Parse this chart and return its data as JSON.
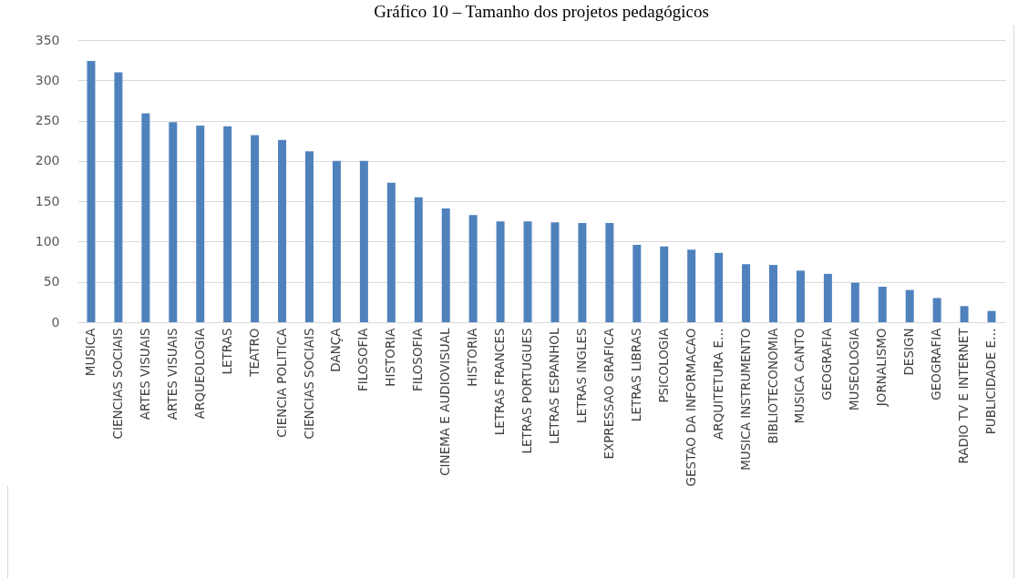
{
  "chart_data": {
    "type": "bar",
    "title": "Gráfico 10 – Tamanho dos projetos pedagógicos",
    "categories": [
      "MUSICA",
      "CIENCIAS SOCIAIS",
      "ARTES VISUAIS",
      "ARTES VISUAIS",
      "ARQUEOLOGIA",
      "LETRAS",
      "TEATRO",
      "CIENCIA POLITICA",
      "CIENCIAS SOCIAIS",
      "DANÇA",
      "FILOSOFIA",
      "HISTORIA",
      "FILOSOFIA",
      "CINEMA E AUDIOVISUAL",
      "HISTORIA",
      "LETRAS FRANCES",
      "LETRAS PORTUGUES",
      "LETRAS ESPANHOL",
      "LETRAS INGLES",
      "EXPRESSAO GRAFICA",
      "LETRAS LIBRAS",
      "PSICOLOGIA",
      "GESTAO DA INFORMACAO",
      "ARQUITETURA E…",
      "MUSICA INSTRUMENTO",
      "BIBLIOTECONOMIA",
      "MUSICA CANTO",
      "GEOGRAFIA",
      "MUSEOLOGIA",
      "JORNALISMO",
      "DESIGN",
      "GEOGRAFIA",
      "RADIO TV E INTERNET",
      "PUBLICIDADE E…"
    ],
    "values": [
      324,
      310,
      259,
      248,
      244,
      243,
      232,
      226,
      212,
      200,
      200,
      173,
      155,
      141,
      133,
      125,
      125,
      124,
      123,
      123,
      96,
      94,
      90,
      86,
      72,
      71,
      64,
      60,
      49,
      44,
      40,
      30,
      20,
      14
    ],
    "color": "#4f81bd",
    "ylim": [
      0,
      350
    ],
    "yticks": [
      0,
      50,
      100,
      150,
      200,
      250,
      300,
      350
    ],
    "grid": "y"
  }
}
